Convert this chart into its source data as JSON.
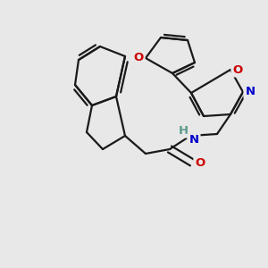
{
  "background_color": "#e8e8e8",
  "bond_color": "#1a1a1a",
  "bond_width": 1.6,
  "figsize": [
    3.0,
    3.0
  ],
  "dpi": 100,
  "xlim": [
    0,
    300
  ],
  "ylim": [
    0,
    300
  ]
}
